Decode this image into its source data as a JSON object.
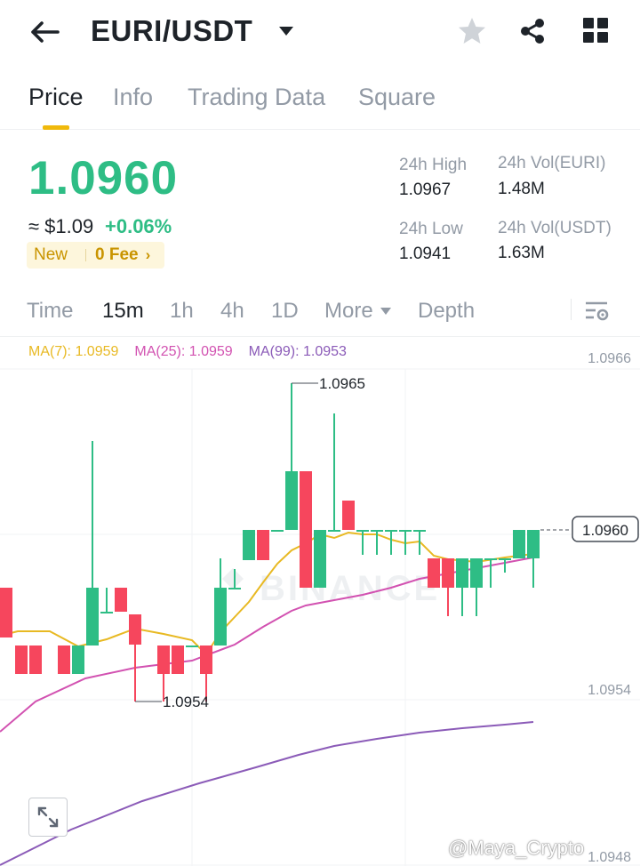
{
  "header": {
    "pair": "EURI/USDT",
    "icons": {
      "back": "back-arrow-icon",
      "dropdown": "caret-down-icon",
      "favorite": "star-icon",
      "share": "share-icon",
      "grid": "grid-icon"
    }
  },
  "tabs": [
    {
      "label": "Price",
      "active": true
    },
    {
      "label": "Info",
      "active": false
    },
    {
      "label": "Trading Data",
      "active": false
    },
    {
      "label": "Square",
      "active": false
    }
  ],
  "ticker": {
    "last_price": "1.0960",
    "fiat_price": "≈ $1.09",
    "change": "+0.06%",
    "badge_new": "New",
    "badge_fee": "0 Fee",
    "badge_chevron": "›",
    "high_label": "24h High",
    "high_value": "1.0967",
    "low_label": "24h Low",
    "low_value": "1.0941",
    "vol_base_label": "24h Vol(EURI)",
    "vol_base_value": "1.48M",
    "vol_quote_label": "24h Vol(USDT)",
    "vol_quote_value": "1.63M"
  },
  "intervals": [
    {
      "label": "Time",
      "active": false
    },
    {
      "label": "15m",
      "active": true
    },
    {
      "label": "1h",
      "active": false
    },
    {
      "label": "4h",
      "active": false
    },
    {
      "label": "1D",
      "active": false
    },
    {
      "label": "More",
      "active": false
    },
    {
      "label": "Depth",
      "active": false
    }
  ],
  "chart": {
    "ma7_text": "MA(7): 1.0959",
    "ma25_text": "MA(25): 1.0959",
    "ma99_text": "MA(99): 1.0953",
    "axis_labels": [
      "1.0966",
      "1.0954",
      "1.0948"
    ],
    "current_price_label": "1.0960",
    "high_marker": "1.0965",
    "low_marker": "1.0954",
    "logo_text": "BINANCE",
    "watermark": "@Maya_Crypto"
  },
  "colors": {
    "up": "#2ebd85",
    "down": "#f6465d",
    "accent": "#f0b90b",
    "ma7": "#e8b923",
    "ma25": "#d252b1",
    "ma99": "#8b5bb8"
  }
}
